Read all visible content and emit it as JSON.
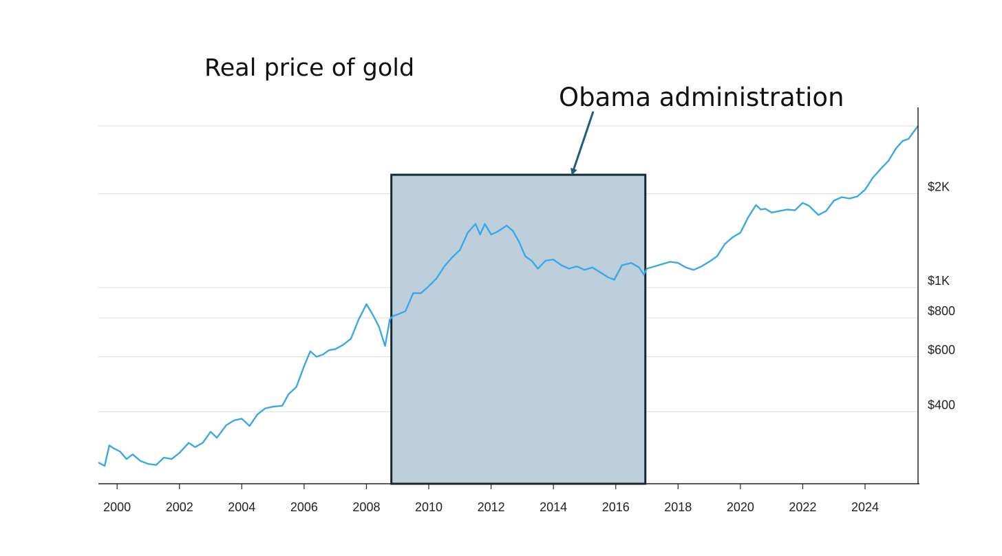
{
  "chart_data": {
    "type": "line",
    "title": "Real price of gold",
    "xlabel": "",
    "ylabel": "",
    "y_scale": "log",
    "xlim": [
      1999.4,
      2025.7
    ],
    "ylim": [
      235,
      3350
    ],
    "grid": "horizontal",
    "y_axis_position": "right",
    "x_ticks": [
      2000,
      2002,
      2004,
      2006,
      2008,
      2010,
      2012,
      2014,
      2016,
      2018,
      2020,
      2022,
      2024
    ],
    "x_tick_labels": [
      "2000",
      "2002",
      "2004",
      "2006",
      "2008",
      "2010",
      "2012",
      "2014",
      "2016",
      "2018",
      "2020",
      "2022",
      "2024"
    ],
    "y_ticks": [
      400,
      600,
      800,
      1000,
      2000
    ],
    "y_tick_labels": [
      "$400",
      "$600",
      "$800",
      "$1K",
      "$2K"
    ],
    "y_gridlines": [
      400,
      600,
      800,
      1000,
      2000,
      3300
    ],
    "series": [
      {
        "name": "Real price of gold",
        "color": "#3ba7e4",
        "x": [
          1999.4,
          1999.6,
          1999.75,
          1999.9,
          2000.1,
          2000.3,
          2000.5,
          2000.75,
          2001.0,
          2001.25,
          2001.5,
          2001.75,
          2002.0,
          2002.3,
          2002.5,
          2002.75,
          2003.0,
          2003.2,
          2003.5,
          2003.75,
          2004.0,
          2004.25,
          2004.5,
          2004.75,
          2005.0,
          2005.3,
          2005.5,
          2005.75,
          2006.0,
          2006.2,
          2006.4,
          2006.6,
          2006.8,
          2007.0,
          2007.25,
          2007.5,
          2007.75,
          2008.0,
          2008.2,
          2008.4,
          2008.6,
          2008.75,
          2008.85,
          2009.0,
          2009.25,
          2009.5,
          2009.75,
          2010.0,
          2010.25,
          2010.5,
          2010.75,
          2011.0,
          2011.25,
          2011.5,
          2011.65,
          2011.8,
          2012.0,
          2012.2,
          2012.5,
          2012.7,
          2012.9,
          2013.1,
          2013.3,
          2013.5,
          2013.75,
          2014.0,
          2014.25,
          2014.5,
          2014.75,
          2015.0,
          2015.25,
          2015.5,
          2015.75,
          2015.95,
          2016.2,
          2016.5,
          2016.75,
          2016.9,
          2017.0,
          2017.25,
          2017.5,
          2017.75,
          2018.0,
          2018.25,
          2018.5,
          2018.75,
          2019.0,
          2019.25,
          2019.5,
          2019.75,
          2020.0,
          2020.25,
          2020.5,
          2020.65,
          2020.8,
          2021.0,
          2021.25,
          2021.5,
          2021.75,
          2022.0,
          2022.2,
          2022.5,
          2022.75,
          2023.0,
          2023.25,
          2023.5,
          2023.75,
          2024.0,
          2024.25,
          2024.5,
          2024.75,
          2025.0,
          2025.2,
          2025.4,
          2025.55,
          2025.7
        ],
        "y": [
          275,
          268,
          312,
          305,
          298,
          282,
          292,
          278,
          272,
          270,
          285,
          282,
          295,
          318,
          308,
          318,
          345,
          330,
          362,
          375,
          380,
          360,
          392,
          410,
          415,
          418,
          455,
          480,
          560,
          625,
          600,
          610,
          630,
          635,
          655,
          685,
          790,
          885,
          820,
          750,
          650,
          790,
          810,
          820,
          840,
          960,
          960,
          1010,
          1070,
          1170,
          1250,
          1320,
          1500,
          1600,
          1480,
          1600,
          1480,
          1510,
          1580,
          1520,
          1400,
          1260,
          1220,
          1150,
          1220,
          1230,
          1180,
          1150,
          1170,
          1140,
          1160,
          1120,
          1080,
          1060,
          1180,
          1200,
          1160,
          1100,
          1150,
          1170,
          1190,
          1210,
          1200,
          1160,
          1140,
          1170,
          1210,
          1260,
          1380,
          1450,
          1500,
          1680,
          1840,
          1780,
          1790,
          1740,
          1760,
          1780,
          1770,
          1870,
          1830,
          1710,
          1760,
          1900,
          1950,
          1930,
          1960,
          2060,
          2250,
          2400,
          2550,
          2800,
          2950,
          3000,
          3150,
          3300
        ]
      }
    ],
    "annotations": [
      {
        "text": "Obama administration",
        "type": "shaded-range",
        "x_start": 2008.8,
        "x_end": 2016.95,
        "fill": "#bccfdb",
        "stroke": "#132a35"
      }
    ]
  }
}
